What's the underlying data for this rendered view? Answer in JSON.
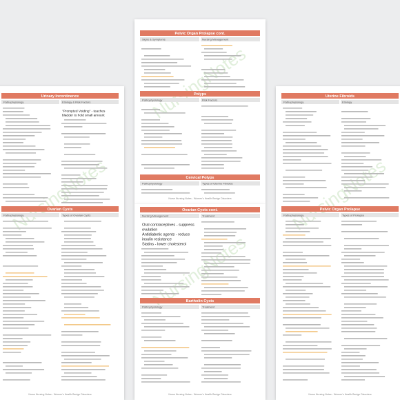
{
  "watermark": "NursingNotes",
  "footer": "Nurse Nursing Notes - Women's Health Benign Disorders",
  "pages": [
    {
      "sections": [
        {
          "title": "Pelvic Organ Prolapse cont.",
          "columns": [
            "Signs & Symptoms",
            "Nursing Management"
          ]
        },
        {
          "title": "Polyps",
          "columns": [
            "Pathophysiology",
            "Risk Factors"
          ]
        },
        {
          "title": "Cervical Polyps",
          "columns": [
            "Pathophysiology",
            "Types of Uterine Fibroids"
          ]
        }
      ]
    },
    {
      "sections": [
        {
          "title": "Urinary Incontinence",
          "columns": [
            "Pathophysiology",
            "Etiology & Risk Factors"
          ],
          "notes": [
            "\"Prompted Voiding\" - teaches",
            "bladder to hold small amount"
          ]
        },
        {
          "title": "Ovarian Cysts",
          "columns": [
            "Pathophysiology",
            "Types of Ovarian Cysts"
          ]
        }
      ]
    },
    {
      "sections": [
        {
          "title": "Ovarian Cysts cont.",
          "columns": [
            "Nursing Management",
            "Treatment"
          ],
          "notes": [
            "Oral contraceptives - suppress",
            "ovulation",
            "Antidiabetic agents - reduce",
            "insulin resistance",
            "Statins - lower cholesterol"
          ]
        },
        {
          "title": "Bartholin Cysts",
          "columns": [
            "Pathophysiology",
            "Treatment"
          ]
        }
      ]
    },
    {
      "sections": [
        {
          "title": "Uterine Fibroids",
          "columns": [
            "Pathophysiology",
            "Etiology"
          ]
        },
        {
          "title": "Pelvic Organ Prolapse",
          "columns": [
            "Pathophysiology",
            "Types of Prolapse"
          ]
        }
      ]
    }
  ]
}
